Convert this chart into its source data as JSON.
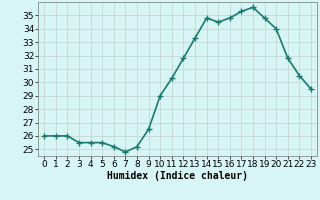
{
  "xlabel": "Humidex (Indice chaleur)",
  "x": [
    0,
    1,
    2,
    3,
    4,
    5,
    6,
    7,
    8,
    9,
    10,
    11,
    12,
    13,
    14,
    15,
    16,
    17,
    18,
    19,
    20,
    21,
    22,
    23
  ],
  "y": [
    26.0,
    26.0,
    26.0,
    25.5,
    25.5,
    25.5,
    25.2,
    24.8,
    25.2,
    26.5,
    29.0,
    30.3,
    31.8,
    33.3,
    34.8,
    34.5,
    34.8,
    35.3,
    35.6,
    34.8,
    34.0,
    31.8,
    30.5,
    29.5
  ],
  "line_color": "#1a7a6e",
  "marker": "+",
  "markersize": 4,
  "markeredgewidth": 1.0,
  "bg_color": "#d8f5f5",
  "grid_color": "#c0d0d0",
  "ylim": [
    24.5,
    36.0
  ],
  "yticks": [
    25,
    26,
    27,
    28,
    29,
    30,
    31,
    32,
    33,
    34,
    35
  ],
  "xlim": [
    -0.5,
    23.5
  ],
  "xticks": [
    0,
    1,
    2,
    3,
    4,
    5,
    6,
    7,
    8,
    9,
    10,
    11,
    12,
    13,
    14,
    15,
    16,
    17,
    18,
    19,
    20,
    21,
    22,
    23
  ],
  "xlabel_fontsize": 7,
  "tick_fontsize": 6.5,
  "linewidth": 1.2
}
